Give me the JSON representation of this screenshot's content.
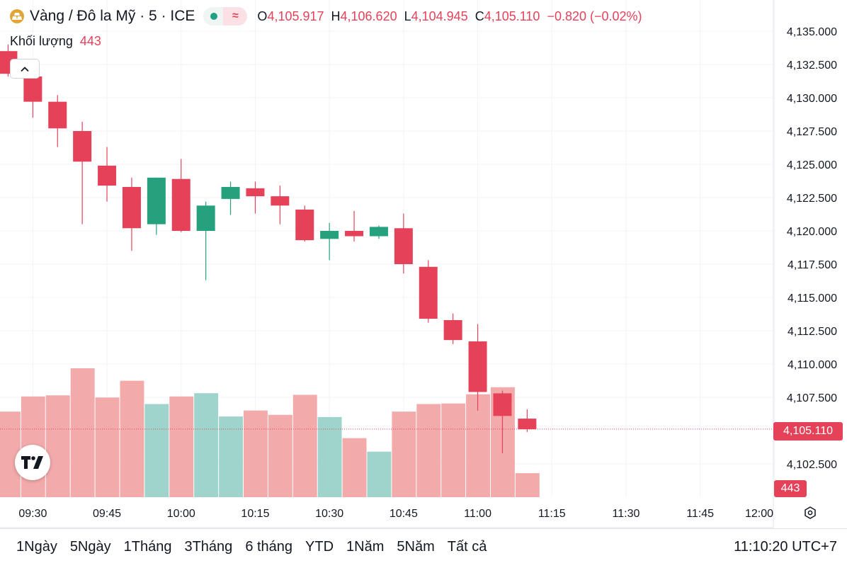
{
  "header": {
    "symbol_title": "Vàng / Đô la Mỹ · 5 · ICE",
    "status_wave": "≈",
    "ohlc": [
      {
        "key": "O",
        "value": "4,105.917"
      },
      {
        "key": "H",
        "value": "4,106.620"
      },
      {
        "key": "L",
        "value": "4,104.945"
      },
      {
        "key": "C",
        "value": "4,105.110"
      }
    ],
    "change": "−0.820 (−0.02%)",
    "volume_label": "Khối lượng",
    "volume_value": "443"
  },
  "icons": {
    "symbol": "gold-bars-icon",
    "collapse": "chevron-up-icon",
    "logo": "tradingview-logo",
    "settings": "settings-hexagon-icon"
  },
  "colors": {
    "up": "#26a17e",
    "down": "#e5425a",
    "up_volume": "#9fd4cc",
    "down_volume": "#f2aaab",
    "grid": "#f0f3fa",
    "axis_text": "#131722"
  },
  "chart_data": {
    "type": "candlestick",
    "interval_minutes": 5,
    "x_ticks": [
      "09:30",
      "09:45",
      "10:00",
      "10:15",
      "10:30",
      "10:45",
      "11:00",
      "11:15",
      "11:30",
      "11:45",
      "12:00"
    ],
    "y_ticks": [
      "4,135.000",
      "4,132.500",
      "4,130.000",
      "4,127.500",
      "4,125.000",
      "4,122.500",
      "4,120.000",
      "4,117.500",
      "4,115.000",
      "4,112.500",
      "4,110.000",
      "4,107.500",
      "4,102.500"
    ],
    "ylim": [
      4100.5,
      4135.4
    ],
    "last_price": 4105.11,
    "last_price_label": "4,105.110",
    "last_volume_label": "443",
    "candles": [
      {
        "time": "09:25",
        "open": 4133.5,
        "high": 4134.0,
        "low": 4131.6,
        "close": 4131.8,
        "volume": 1580
      },
      {
        "time": "09:30",
        "open": 4131.6,
        "high": 4132.4,
        "low": 4128.5,
        "close": 4129.7,
        "volume": 1860
      },
      {
        "time": "09:35",
        "open": 4129.7,
        "high": 4130.2,
        "low": 4126.3,
        "close": 4127.7,
        "volume": 1880
      },
      {
        "time": "09:40",
        "open": 4127.5,
        "high": 4128.2,
        "low": 4120.5,
        "close": 4125.2,
        "volume": 2380
      },
      {
        "time": "09:45",
        "open": 4124.9,
        "high": 4126.3,
        "low": 4122.2,
        "close": 4123.4,
        "volume": 1840
      },
      {
        "time": "09:50",
        "open": 4123.3,
        "high": 4124.0,
        "low": 4118.5,
        "close": 4120.2,
        "volume": 2150
      },
      {
        "time": "09:55",
        "open": 4120.5,
        "high": 4124.0,
        "low": 4119.7,
        "close": 4124.0,
        "volume": 1720
      },
      {
        "time": "10:00",
        "open": 4123.9,
        "high": 4125.4,
        "low": 4119.9,
        "close": 4120.0,
        "volume": 1860
      },
      {
        "time": "10:05",
        "open": 4120.0,
        "high": 4122.2,
        "low": 4116.3,
        "close": 4121.9,
        "volume": 1920
      },
      {
        "time": "10:10",
        "open": 4122.4,
        "high": 4123.7,
        "low": 4121.2,
        "close": 4123.3,
        "volume": 1490
      },
      {
        "time": "10:15",
        "open": 4123.2,
        "high": 4123.7,
        "low": 4121.3,
        "close": 4122.6,
        "volume": 1600
      },
      {
        "time": "10:20",
        "open": 4122.6,
        "high": 4123.4,
        "low": 4120.5,
        "close": 4121.9,
        "volume": 1520
      },
      {
        "time": "10:25",
        "open": 4121.6,
        "high": 4121.9,
        "low": 4119.2,
        "close": 4119.3,
        "volume": 1890
      },
      {
        "time": "10:30",
        "open": 4119.4,
        "high": 4120.6,
        "low": 4117.8,
        "close": 4120.0,
        "volume": 1480
      },
      {
        "time": "10:35",
        "open": 4120.0,
        "high": 4121.5,
        "low": 4119.2,
        "close": 4119.6,
        "volume": 1090
      },
      {
        "time": "10:40",
        "open": 4119.6,
        "high": 4120.4,
        "low": 4119.4,
        "close": 4120.3,
        "volume": 840
      },
      {
        "time": "10:45",
        "open": 4120.2,
        "high": 4121.3,
        "low": 4116.8,
        "close": 4117.5,
        "volume": 1580
      },
      {
        "time": "10:50",
        "open": 4117.3,
        "high": 4117.8,
        "low": 4113.1,
        "close": 4113.4,
        "volume": 1720
      },
      {
        "time": "10:55",
        "open": 4113.3,
        "high": 4113.8,
        "low": 4111.5,
        "close": 4111.8,
        "volume": 1730
      },
      {
        "time": "11:00",
        "open": 4111.7,
        "high": 4113.0,
        "low": 4106.5,
        "close": 4107.9,
        "volume": 1900
      },
      {
        "time": "11:05",
        "open": 4107.8,
        "high": 4108.0,
        "low": 4103.3,
        "close": 4106.1,
        "volume": 2030
      },
      {
        "time": "11:10",
        "open": 4105.9,
        "high": 4106.6,
        "low": 4104.9,
        "close": 4105.1,
        "volume": 443
      }
    ]
  },
  "range_bar": {
    "items": [
      "1Ngày",
      "5Ngày",
      "1Tháng",
      "3Tháng",
      "6 tháng",
      "YTD",
      "1Năm",
      "5Năm",
      "Tất cả"
    ],
    "clock": "11:10:20 UTC+7"
  }
}
